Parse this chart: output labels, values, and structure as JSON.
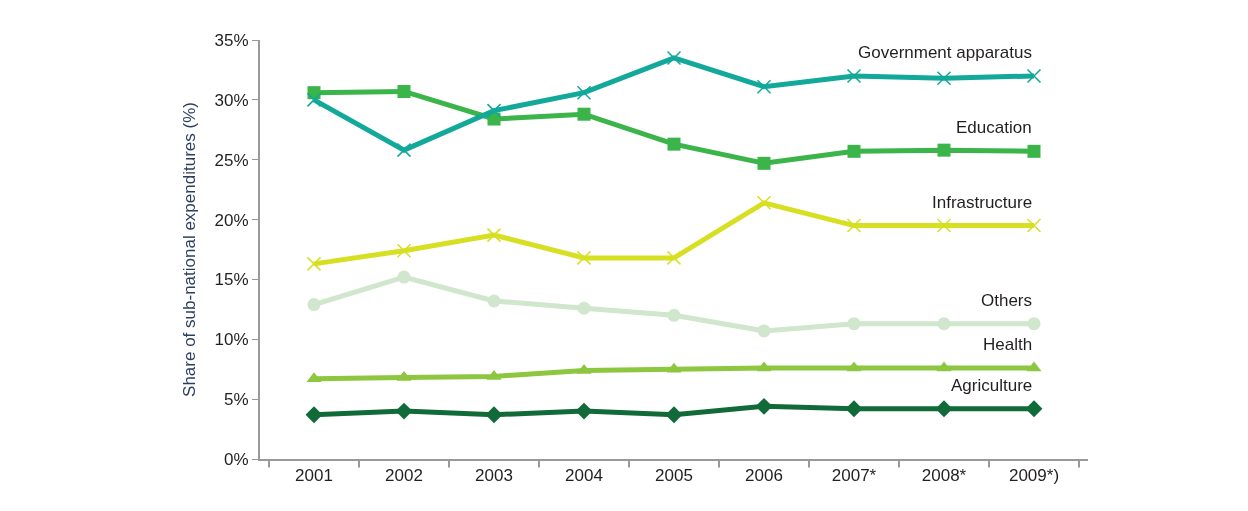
{
  "chart_data": {
    "type": "line",
    "ylabel": "Share of sub-national expenditures (%)",
    "categories": [
      "2001",
      "2002",
      "2003",
      "2004",
      "2005",
      "2006",
      "2007*",
      "2008*",
      "2009*)"
    ],
    "ylim": [
      0,
      35
    ],
    "yticks": [
      {
        "value": 0,
        "label": "0%"
      },
      {
        "value": 5,
        "label": "5%"
      },
      {
        "value": 10,
        "label": "10%"
      },
      {
        "value": 15,
        "label": "15%"
      },
      {
        "value": 20,
        "label": "20%"
      },
      {
        "value": 25,
        "label": "25%"
      },
      {
        "value": 30,
        "label": "30%"
      },
      {
        "value": 35,
        "label": "35%"
      }
    ],
    "grid": false,
    "legend": false,
    "line_style": "solid",
    "series": [
      {
        "name": "Government apparatus",
        "color": "#12a89a",
        "marker": "cross",
        "values": [
          30.0,
          25.8,
          29.1,
          30.6,
          33.5,
          31.1,
          32.0,
          31.8,
          32.0
        ]
      },
      {
        "name": "Education",
        "color": "#3bb44a",
        "marker": "square",
        "values": [
          30.6,
          30.7,
          28.4,
          28.8,
          26.3,
          24.7,
          25.7,
          25.8,
          25.7
        ]
      },
      {
        "name": "Infrastructure",
        "color": "#d7df23",
        "marker": "cross",
        "values": [
          16.3,
          17.4,
          18.7,
          16.8,
          16.8,
          21.4,
          19.5,
          19.5,
          19.5
        ]
      },
      {
        "name": "Others",
        "color": "#d0e6cd",
        "marker": "circle",
        "values": [
          12.9,
          15.2,
          13.2,
          12.6,
          12.0,
          10.7,
          11.3,
          11.3,
          11.3
        ]
      },
      {
        "name": "Health",
        "color": "#8dc63f",
        "marker": "triangle",
        "values": [
          6.7,
          6.8,
          6.9,
          7.4,
          7.5,
          7.6,
          7.6,
          7.6,
          7.6
        ]
      },
      {
        "name": "Agriculture",
        "color": "#116b38",
        "marker": "diamond",
        "values": [
          3.7,
          4.0,
          3.7,
          4.0,
          3.7,
          4.4,
          4.2,
          4.2,
          4.2
        ]
      }
    ]
  }
}
